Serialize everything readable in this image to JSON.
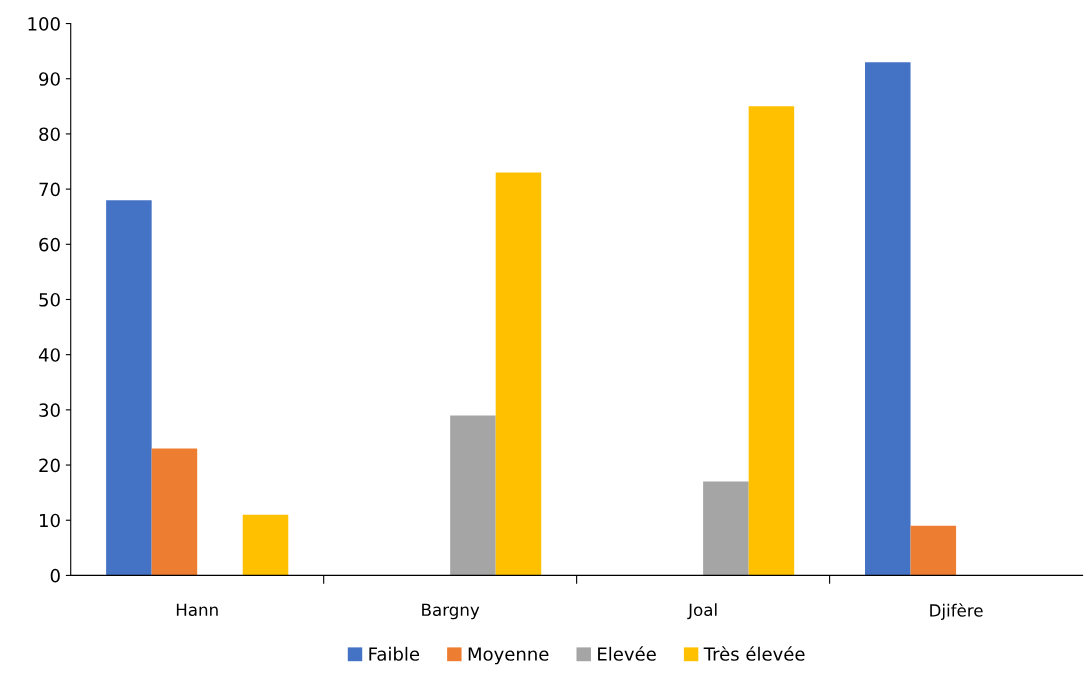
{
  "chart_data": {
    "type": "bar",
    "categories": [
      "Hann",
      "Bargny",
      "Joal",
      "Djifère"
    ],
    "series": [
      {
        "name": "Faible",
        "color": "#4472c4",
        "values": [
          68,
          null,
          null,
          93
        ]
      },
      {
        "name": "Moyenne",
        "color": "#ed7d31",
        "values": [
          23,
          null,
          null,
          9
        ]
      },
      {
        "name": "Elevée",
        "color": "#a5a5a5",
        "values": [
          null,
          29,
          17,
          null
        ]
      },
      {
        "name": "Très élevée",
        "color": "#ffc000",
        "values": [
          11,
          73,
          85,
          null
        ]
      }
    ],
    "ylim": [
      0,
      100
    ],
    "yticks": [
      0,
      10,
      20,
      30,
      40,
      50,
      60,
      70,
      80,
      90,
      100
    ],
    "grid": false,
    "legend": "bottom"
  }
}
